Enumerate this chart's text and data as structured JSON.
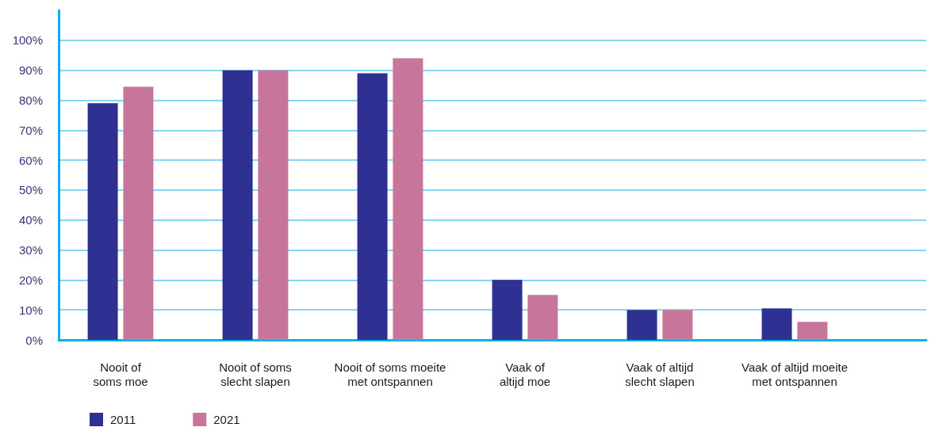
{
  "chart_data": {
    "type": "bar",
    "categories": [
      "Nooit of\nsoms moe",
      "Nooit of soms\nslecht slapen",
      "Nooit of soms moeite\nmet ontspannen",
      "Vaak of\naltijd moe",
      "Vaak of altijd\nslecht slapen",
      "Vaak of altijd moeite\nmet ontspannen"
    ],
    "series": [
      {
        "name": "2011",
        "color": "#2e3192",
        "values": [
          79,
          90,
          89,
          20,
          10,
          10.5
        ]
      },
      {
        "name": "2021",
        "color": "#c8759c",
        "values": [
          84.5,
          90,
          94,
          15,
          10,
          6
        ]
      }
    ],
    "ylim": [
      0,
      110
    ],
    "yticks": [
      {
        "value": 0,
        "label": "0%"
      },
      {
        "value": 10,
        "label": "10%"
      },
      {
        "value": 20,
        "label": "20%"
      },
      {
        "value": 30,
        "label": "30%"
      },
      {
        "value": 40,
        "label": "40%"
      },
      {
        "value": 50,
        "label": "50%"
      },
      {
        "value": 60,
        "label": "60%"
      },
      {
        "value": 70,
        "label": "70%"
      },
      {
        "value": 80,
        "label": "80%"
      },
      {
        "value": 90,
        "label": "90%"
      },
      {
        "value": 100,
        "label": "100%"
      }
    ],
    "grid": "y",
    "legend": "bottom left"
  }
}
